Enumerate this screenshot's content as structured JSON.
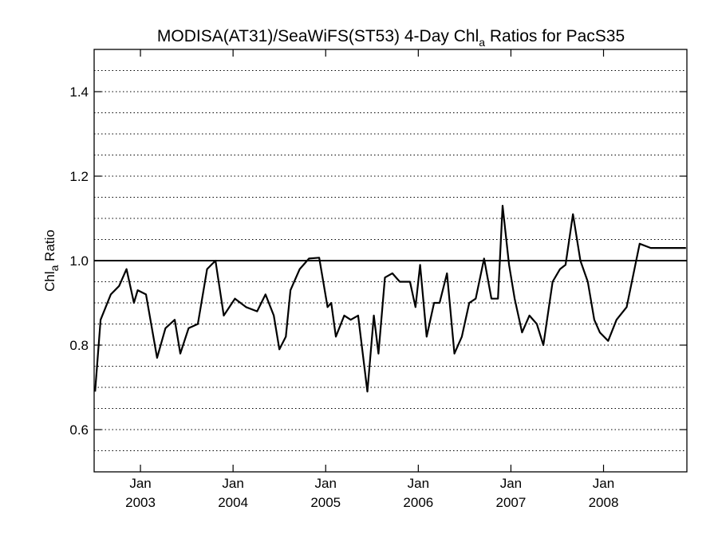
{
  "chart_data": {
    "type": "line",
    "title_prefix": "MODISA(AT31)/SeaWiFS(ST53) 4-Day Chl",
    "title_subscript": "a",
    "title_suffix": " Ratios for PacS35",
    "ylabel_prefix": "Chl",
    "ylabel_subscript": "a",
    "ylabel_suffix": " Ratio",
    "xlim": [
      2002.5,
      2008.9
    ],
    "ylim": [
      0.5,
      1.5
    ],
    "yticks": [
      {
        "value": 0.6,
        "label": "0.6"
      },
      {
        "value": 0.8,
        "label": "0.8"
      },
      {
        "value": 1.0,
        "label": "1.0"
      },
      {
        "value": 1.2,
        "label": "1.2"
      },
      {
        "value": 1.4,
        "label": "1.4"
      }
    ],
    "xticks": [
      {
        "value": 2003.0,
        "month": "Jan",
        "year": "2003"
      },
      {
        "value": 2004.0,
        "month": "Jan",
        "year": "2004"
      },
      {
        "value": 2005.0,
        "month": "Jan",
        "year": "2005"
      },
      {
        "value": 2006.0,
        "month": "Jan",
        "year": "2006"
      },
      {
        "value": 2007.0,
        "month": "Jan",
        "year": "2007"
      },
      {
        "value": 2008.0,
        "month": "Jan",
        "year": "2008"
      }
    ],
    "grid": "horizontal dotted every 0.05",
    "reference_line": 1.0,
    "series": [
      {
        "color": "#000000",
        "x": [
          2002.51,
          2002.57,
          2002.68,
          2002.77,
          2002.85,
          2002.93,
          2002.97,
          2003.06,
          2003.18,
          2003.27,
          2003.37,
          2003.43,
          2003.52,
          2003.62,
          2003.72,
          2003.81,
          2003.9,
          2004.02,
          2004.14,
          2004.26,
          2004.35,
          2004.44,
          2004.5,
          2004.57,
          2004.62,
          2004.72,
          2004.82,
          2004.93,
          2005.02,
          2005.06,
          2005.11,
          2005.2,
          2005.27,
          2005.35,
          2005.45,
          2005.52,
          2005.57,
          2005.64,
          2005.72,
          2005.8,
          2005.91,
          2005.97,
          2006.02,
          2006.09,
          2006.17,
          2006.23,
          2006.31,
          2006.39,
          2006.47,
          2006.55,
          2006.62,
          2006.71,
          2006.79,
          2006.86,
          2006.91,
          2006.98,
          2007.04,
          2007.12,
          2007.2,
          2007.28,
          2007.35,
          2007.45,
          2007.53,
          2007.59,
          2007.67,
          2007.75,
          2007.83,
          2007.9,
          2007.96,
          2008.05,
          2008.14,
          2008.25,
          2008.39,
          2008.51,
          2008.62,
          2008.74,
          2008.84,
          2008.89
        ],
        "y": [
          0.69,
          0.86,
          0.92,
          0.94,
          0.98,
          0.9,
          0.93,
          0.92,
          0.77,
          0.84,
          0.86,
          0.78,
          0.84,
          0.85,
          0.98,
          1.0,
          0.87,
          0.91,
          0.89,
          0.88,
          0.92,
          0.87,
          0.79,
          0.82,
          0.93,
          0.98,
          1.005,
          1.007,
          0.89,
          0.9,
          0.82,
          0.87,
          0.86,
          0.87,
          0.69,
          0.87,
          0.78,
          0.96,
          0.97,
          0.95,
          0.95,
          0.89,
          0.99,
          0.82,
          0.9,
          0.9,
          0.97,
          0.78,
          0.82,
          0.9,
          0.91,
          1.005,
          0.91,
          0.91,
          1.13,
          0.99,
          0.91,
          0.83,
          0.87,
          0.85,
          0.8,
          0.95,
          0.98,
          0.99,
          1.11,
          1.0,
          0.95,
          0.86,
          0.83,
          0.81,
          0.86,
          0.89,
          1.04,
          1.03,
          1.03,
          1.03,
          1.03,
          1.03
        ]
      }
    ]
  }
}
